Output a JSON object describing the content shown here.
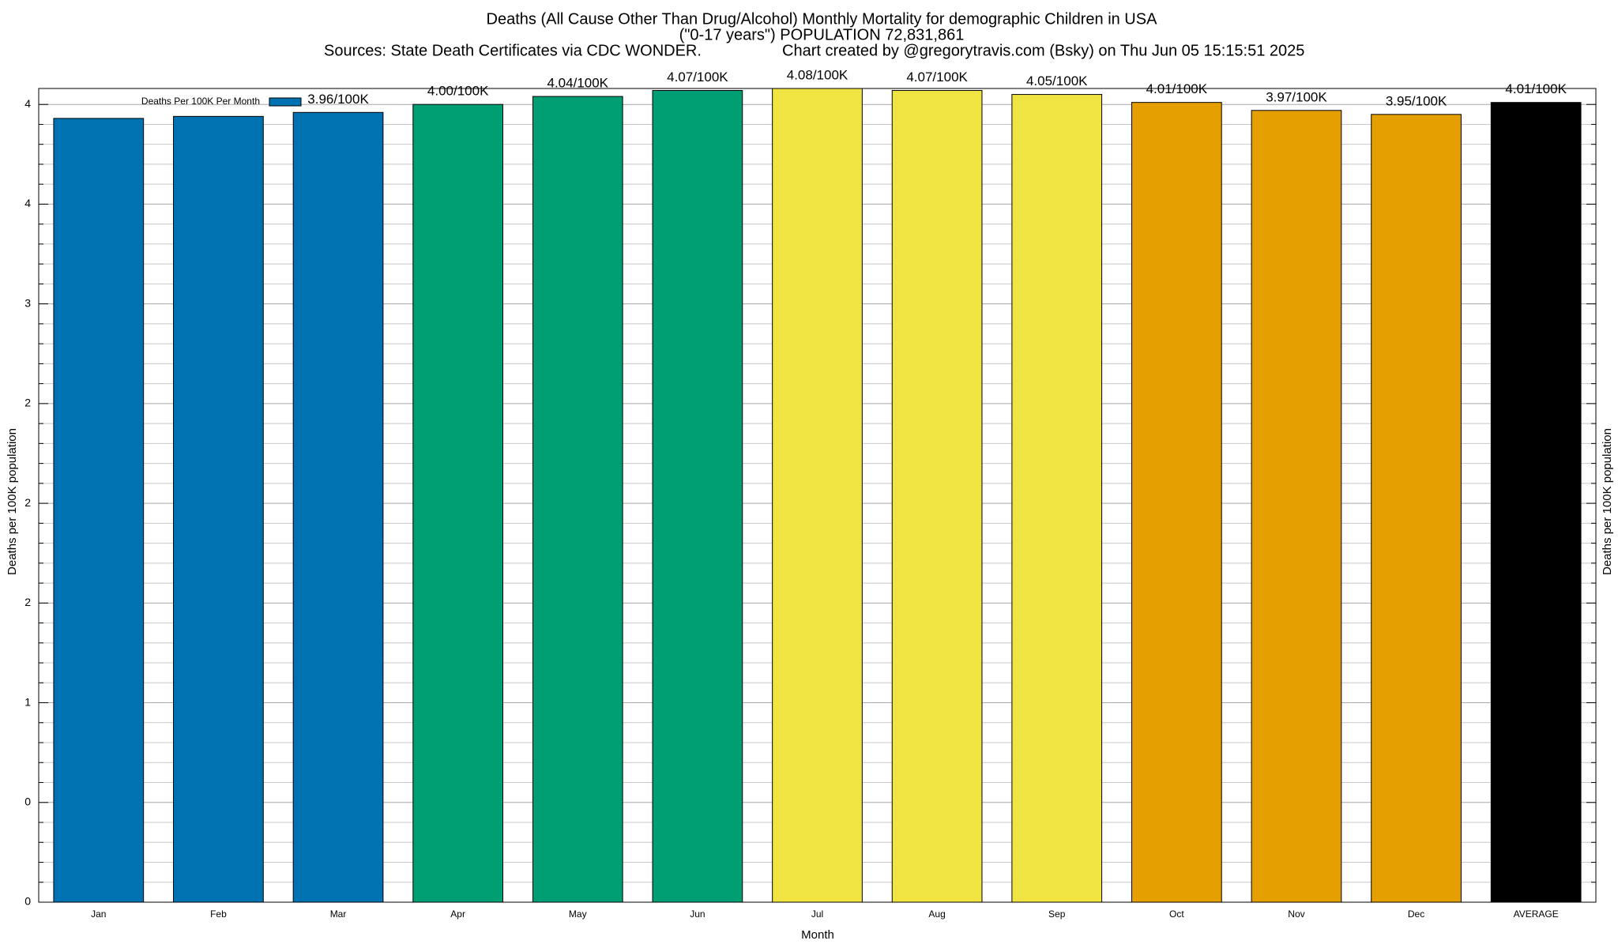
{
  "chart_data": {
    "type": "bar",
    "title": "Deaths (All Cause Other Than Drug/Alcohol) Monthly Mortality for demographic Children in USA",
    "subtitle": "(\"0-17 years\") POPULATION 72,831,861",
    "sources": "Sources: State Death Certificates via CDC WONDER.",
    "credit": "Chart created by @gregorytravis.com (Bsky) on Thu Jun 05 15:15:51 2025",
    "xlabel": "Month",
    "ylabel": "Deaths per 100K population",
    "y2label": "Deaths per 100K population",
    "categories": [
      "Jan",
      "Feb",
      "Mar",
      "Apr",
      "May",
      "Jun",
      "Jul",
      "Aug",
      "Sep",
      "Oct",
      "Nov",
      "Dec",
      "AVERAGE"
    ],
    "series": [
      {
        "name": "Deaths Per 100K Per Month",
        "color": "#0072b2",
        "colors": [
          "#0072b2",
          "#0072b2",
          "#0072b2",
          "#009e73",
          "#009e73",
          "#009e73",
          "#f0e442",
          "#f0e442",
          "#f0e442",
          "#e69f00",
          "#e69f00",
          "#e69f00",
          "#000000"
        ],
        "values": [
          3.93,
          3.94,
          3.96,
          4.0,
          4.04,
          4.07,
          4.08,
          4.07,
          4.05,
          4.01,
          3.97,
          3.95,
          4.01
        ],
        "value_labels": [
          null,
          null,
          "3.96/100K",
          "4.00/100K",
          "4.04/100K",
          "4.07/100K",
          "4.08/100K",
          "4.07/100K",
          "4.05/100K",
          "4.01/100K",
          "3.97/100K",
          "3.95/100K",
          "4.01/100K"
        ]
      }
    ],
    "ylim": [
      0,
      4.08
    ],
    "yticks": [
      0,
      {
        "value": 0.5,
        "label": "0"
      },
      1,
      {
        "value": 1.5,
        "label": "2"
      },
      2,
      {
        "value": 2.5,
        "label": "2"
      },
      3,
      {
        "value": 3.5,
        "label": "4"
      },
      4
    ],
    "yticks_minor": [
      0.1,
      0.2,
      0.3,
      0.4,
      0.6,
      0.7,
      0.8,
      0.9,
      1.1,
      1.2,
      1.3,
      1.4,
      1.6,
      1.7,
      1.8,
      1.9,
      2.1,
      2.2,
      2.3,
      2.4,
      2.6,
      2.7,
      2.8,
      2.9,
      3.1,
      3.2,
      3.3,
      3.4,
      3.6,
      3.7,
      3.8,
      3.9
    ],
    "grid": true,
    "legend": "upper left"
  }
}
